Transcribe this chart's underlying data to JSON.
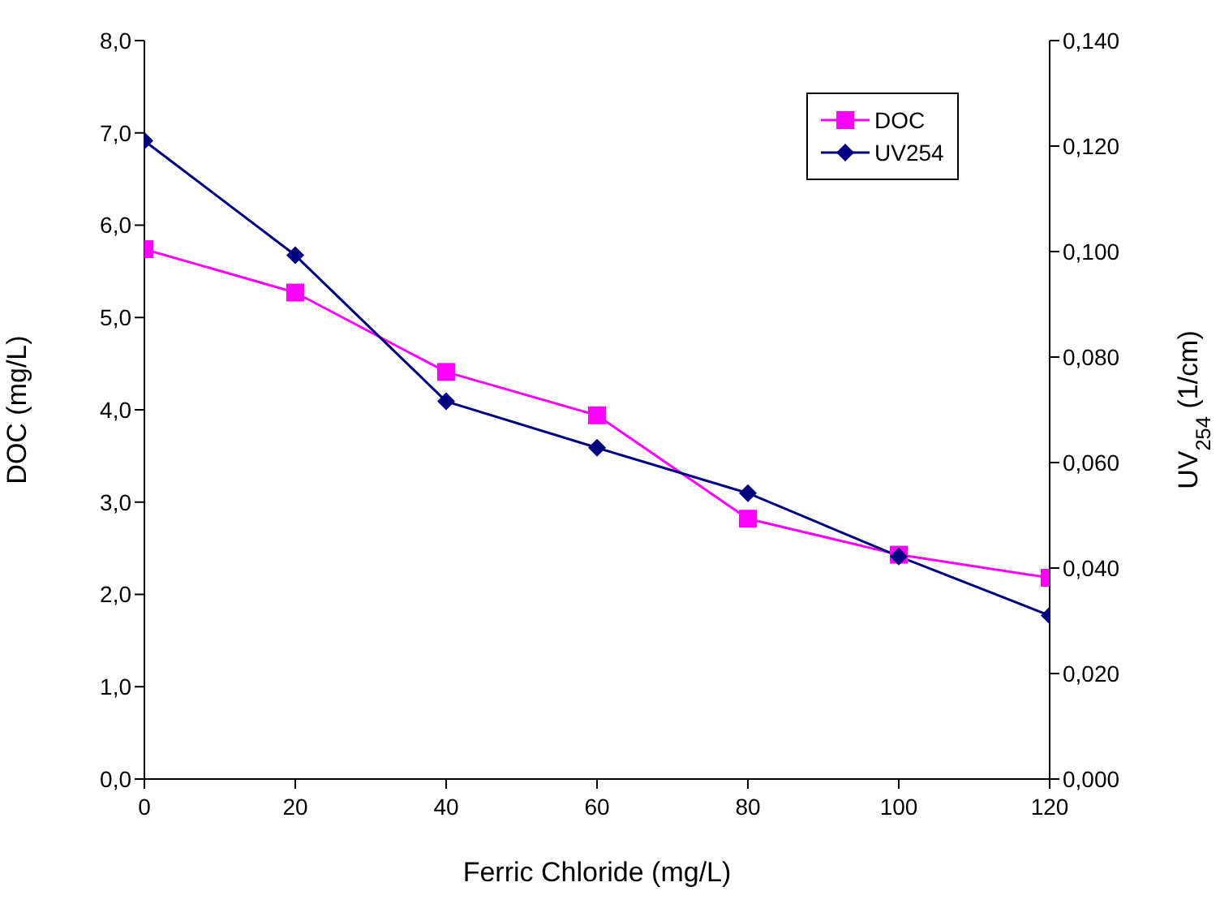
{
  "chart_data": {
    "type": "line",
    "xlabel": "Ferric Chloride (mg/L)",
    "ylabel": "DOC (mg/L)",
    "y2label": "UV$_{254}$ (1/cm)",
    "x": [
      0,
      20,
      40,
      60,
      80,
      100,
      120
    ],
    "series": [
      {
        "name": "DOC",
        "color": "#ff00ff",
        "marker": "square",
        "values": [
          5.74,
          5.27,
          4.41,
          3.94,
          2.82,
          2.43,
          2.18
        ]
      },
      {
        "name": "UV254",
        "color": "#000080",
        "marker": "diamond",
        "axis": "y2",
        "values": [
          0.121,
          0.0993,
          0.0716,
          0.0628,
          0.0542,
          0.0422,
          0.031
        ]
      }
    ],
    "xlim": [
      0,
      120
    ],
    "xticks": [
      0,
      20,
      40,
      60,
      80,
      100,
      120
    ],
    "ylim": [
      0,
      8
    ],
    "yticks": [
      {
        "value": 0,
        "label": "0,0"
      },
      {
        "value": 1,
        "label": "1,0"
      },
      {
        "value": 2,
        "label": "2,0"
      },
      {
        "value": 3,
        "label": "3,0"
      },
      {
        "value": 4,
        "label": "4,0"
      },
      {
        "value": 5,
        "label": "5,0"
      },
      {
        "value": 6,
        "label": "6,0"
      },
      {
        "value": 7,
        "label": "7,0"
      },
      {
        "value": 8,
        "label": "8,0"
      }
    ],
    "y2lim": [
      0,
      0.14
    ],
    "y2ticks": [
      {
        "value": 0,
        "label": "0,000"
      },
      {
        "value": 0.02,
        "label": "0,020"
      },
      {
        "value": 0.04,
        "label": "0,040"
      },
      {
        "value": 0.06,
        "label": "0,060"
      },
      {
        "value": 0.08,
        "label": "0,080"
      },
      {
        "value": 0.1,
        "label": "0,100"
      },
      {
        "value": 0.12,
        "label": "0,120"
      },
      {
        "value": 0.14,
        "label": "0,140"
      }
    ],
    "grid": false,
    "legend": "top right",
    "line_style": "solid"
  }
}
